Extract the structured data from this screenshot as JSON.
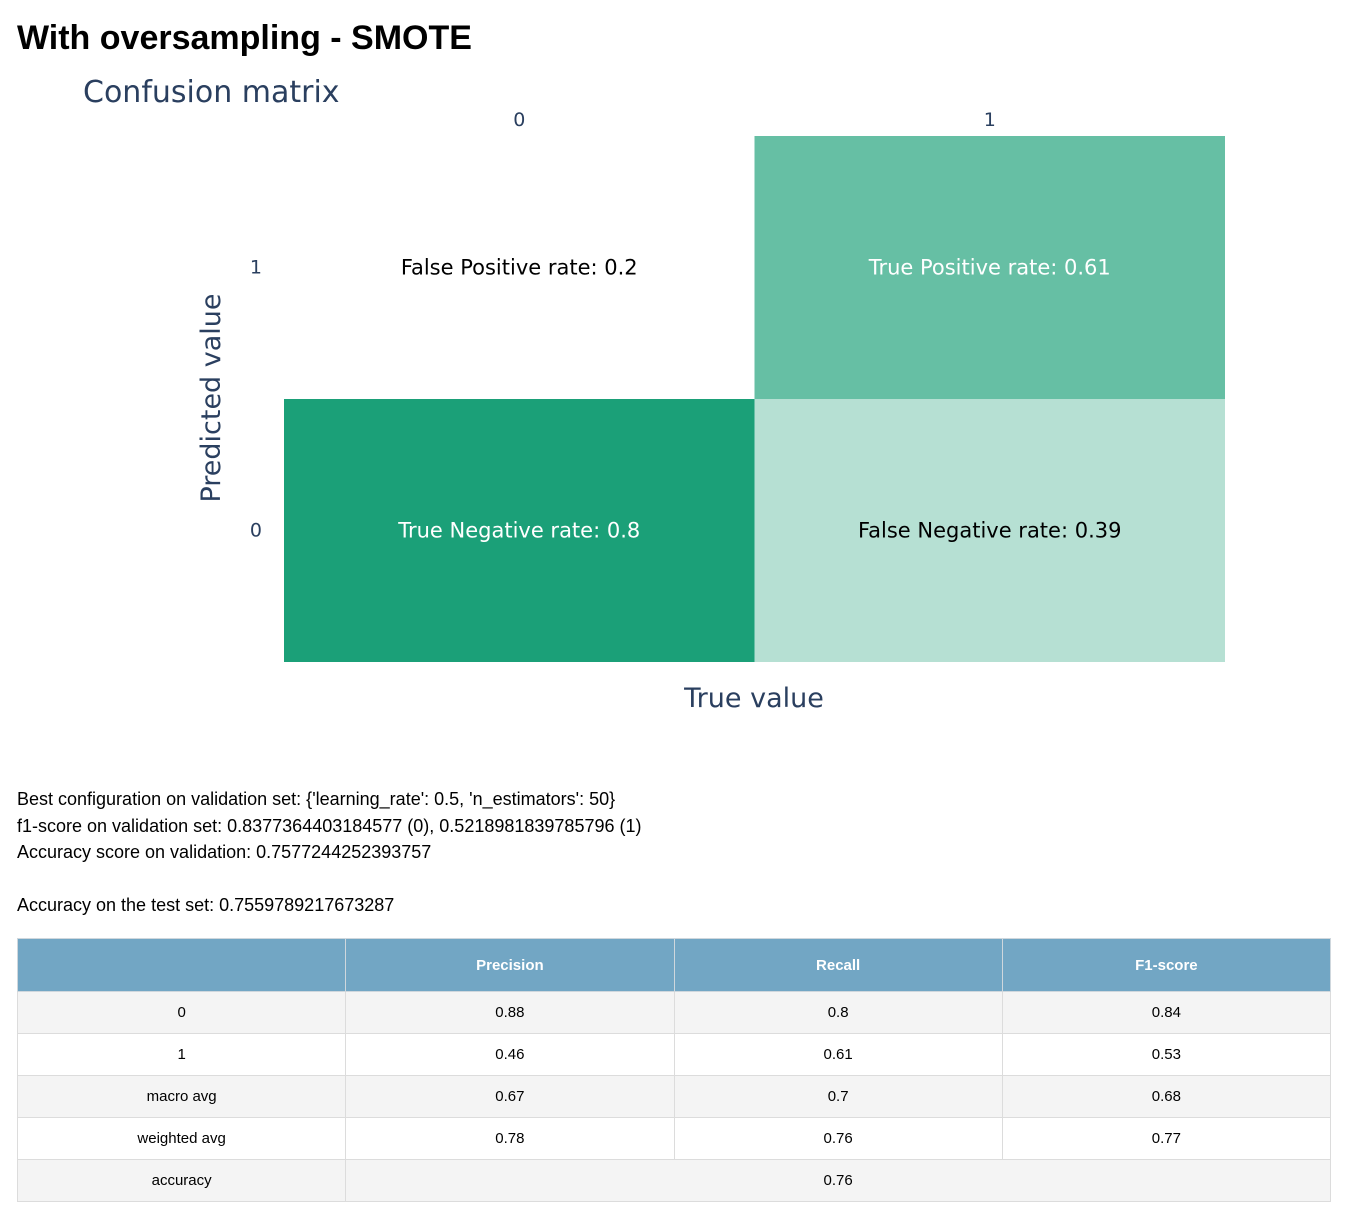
{
  "page": {
    "title": "With oversampling - SMOTE"
  },
  "chart_data": {
    "type": "heatmap",
    "title": "Confusion matrix",
    "xlabel": "True value",
    "ylabel": "Predicted value",
    "x_categories": [
      "0",
      "1"
    ],
    "y_categories": [
      "1",
      "0"
    ],
    "cells": [
      {
        "true": "0",
        "predicted": "1",
        "label": "False Positive rate: 0.2",
        "value": 0.2,
        "color": "#ffffff",
        "text_color": "#000000"
      },
      {
        "true": "1",
        "predicted": "1",
        "label": "True Positive rate: 0.61",
        "value": 0.61,
        "color": "#66bfa4",
        "text_color": "#ffffff"
      },
      {
        "true": "0",
        "predicted": "0",
        "label": "True Negative rate: 0.8",
        "value": 0.8,
        "color": "#1ba078",
        "text_color": "#ffffff"
      },
      {
        "true": "1",
        "predicted": "0",
        "label": "False Negative rate: 0.39",
        "value": 0.39,
        "color": "#b6e0d3",
        "text_color": "#000000"
      }
    ],
    "axis_color": "#2a3f5f"
  },
  "info": {
    "best_config": "Best configuration on validation set: {'learning_rate': 0.5, 'n_estimators': 50}",
    "f1_validation": "f1-score on validation set: 0.8377364403184577 (0), 0.5218981839785796 (1)",
    "accuracy_validation": "Accuracy score on validation: 0.7577244252393757",
    "accuracy_test": "Accuracy on the test set: 0.7559789217673287"
  },
  "report": {
    "headers": [
      "",
      "Precision",
      "Recall",
      "F1-score"
    ],
    "rows": [
      {
        "label": "0",
        "precision": "0.88",
        "recall": "0.8",
        "f1": "0.84"
      },
      {
        "label": "1",
        "precision": "0.46",
        "recall": "0.61",
        "f1": "0.53"
      },
      {
        "label": "macro avg",
        "precision": "0.67",
        "recall": "0.7",
        "f1": "0.68"
      },
      {
        "label": "weighted avg",
        "precision": "0.78",
        "recall": "0.76",
        "f1": "0.77"
      }
    ],
    "accuracy": {
      "label": "accuracy",
      "value": "0.76"
    },
    "header_color": "#72a6c4"
  }
}
